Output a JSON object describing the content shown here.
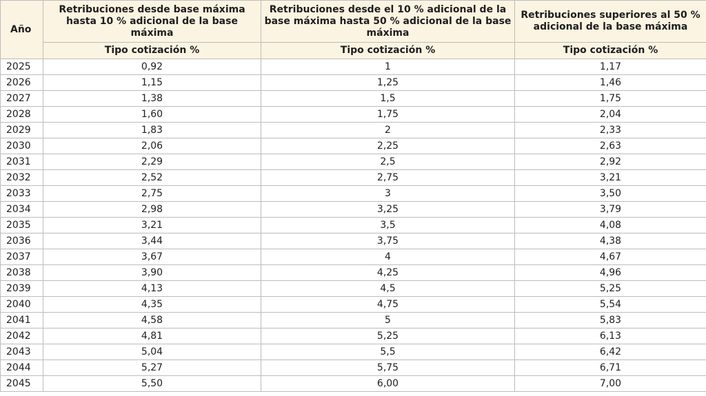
{
  "table": {
    "year_header": "Año",
    "columns": [
      {
        "title": "Retribuciones desde base máxima hasta 10 % adicional de la base máxima",
        "subheader": "Tipo cotización %"
      },
      {
        "title": "Retribuciones desde el 10 % adicional de la base máxima hasta 50 % adicional de la base máxima",
        "subheader": "Tipo cotización %"
      },
      {
        "title": "Retribuciones superiores al 50 % adicional de la base máxima",
        "subheader": "Tipo cotización %"
      }
    ],
    "rows": [
      {
        "year": "2025",
        "c1": "0,92",
        "c2": "1",
        "c3": "1,17"
      },
      {
        "year": "2026",
        "c1": "1,15",
        "c2": "1,25",
        "c3": "1,46"
      },
      {
        "year": "2027",
        "c1": "1,38",
        "c2": "1,5",
        "c3": "1,75"
      },
      {
        "year": "2028",
        "c1": "1,60",
        "c2": "1,75",
        "c3": "2,04"
      },
      {
        "year": "2029",
        "c1": "1,83",
        "c2": "2",
        "c3": "2,33"
      },
      {
        "year": "2030",
        "c1": "2,06",
        "c2": "2,25",
        "c3": "2,63"
      },
      {
        "year": "2031",
        "c1": "2,29",
        "c2": "2,5",
        "c3": "2,92"
      },
      {
        "year": "2032",
        "c1": "2,52",
        "c2": "2,75",
        "c3": "3,21"
      },
      {
        "year": "2033",
        "c1": "2,75",
        "c2": "3",
        "c3": "3,50"
      },
      {
        "year": "2034",
        "c1": "2,98",
        "c2": "3,25",
        "c3": "3,79"
      },
      {
        "year": "2035",
        "c1": "3,21",
        "c2": "3,5",
        "c3": "4,08"
      },
      {
        "year": "2036",
        "c1": "3,44",
        "c2": "3,75",
        "c3": "4,38"
      },
      {
        "year": "2037",
        "c1": "3,67",
        "c2": "4",
        "c3": "4,67"
      },
      {
        "year": "2038",
        "c1": "3,90",
        "c2": "4,25",
        "c3": "4,96"
      },
      {
        "year": "2039",
        "c1": "4,13",
        "c2": "4,5",
        "c3": "5,25"
      },
      {
        "year": "2040",
        "c1": "4,35",
        "c2": "4,75",
        "c3": "5,54"
      },
      {
        "year": "2041",
        "c1": "4,58",
        "c2": "5",
        "c3": "5,83"
      },
      {
        "year": "2042",
        "c1": "4,81",
        "c2": "5,25",
        "c3": "6,13"
      },
      {
        "year": "2043",
        "c1": "5,04",
        "c2": "5,5",
        "c3": "6,42"
      },
      {
        "year": "2044",
        "c1": "5,27",
        "c2": "5,75",
        "c3": "6,71"
      },
      {
        "year": "2045",
        "c1": "5,50",
        "c2": "6,00",
        "c3": "7,00"
      }
    ]
  }
}
